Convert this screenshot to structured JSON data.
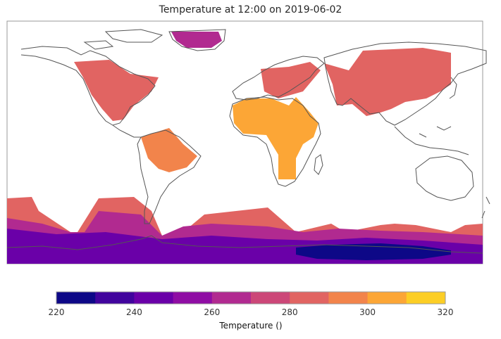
{
  "title": "Temperature at 12:00 on 2019-06-02",
  "colorbar": {
    "label": "Temperature ()",
    "min": 220,
    "max": 320,
    "step": 10,
    "tick_labels": [
      "220",
      "240",
      "260",
      "280",
      "300",
      "320"
    ],
    "colors": [
      "#0d0887",
      "#41049d",
      "#6a00a8",
      "#8f0da4",
      "#b12a90",
      "#cc4778",
      "#e16462",
      "#f2844b",
      "#fca636",
      "#fcce25",
      "#f0f921"
    ]
  },
  "map": {
    "projection": "plate-carree",
    "coastlines": true,
    "gridlines": false,
    "field_regions": [
      {
        "name": "greenland",
        "value": 260
      },
      {
        "name": "north-america",
        "value": 285
      },
      {
        "name": "south-america",
        "value": 295
      },
      {
        "name": "europe",
        "value": 285
      },
      {
        "name": "africa",
        "value": 305
      },
      {
        "name": "asia",
        "value": 285
      },
      {
        "name": "southern-ocean-north-band",
        "value": 280
      },
      {
        "name": "southern-ocean-middle-band",
        "value": 262
      },
      {
        "name": "southern-ocean-south-band",
        "value": 245
      },
      {
        "name": "antarctica",
        "value": 222
      }
    ]
  }
}
